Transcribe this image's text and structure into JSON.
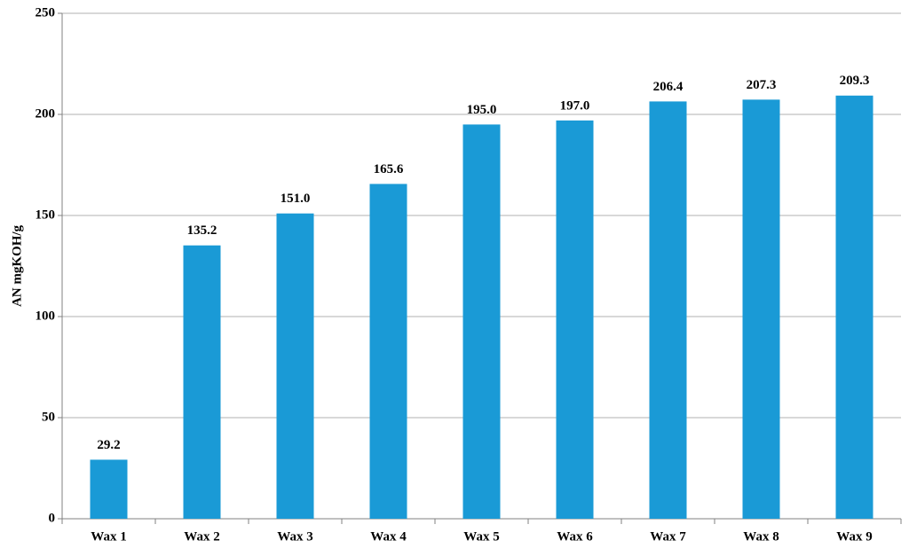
{
  "chart_data": {
    "type": "bar",
    "y_label": "AN mgKOH/g",
    "categories": [
      "Wax 1",
      "Wax 2",
      "Wax 3",
      "Wax 4",
      "Wax 5",
      "Wax 6",
      "Wax 7",
      "Wax 8",
      "Wax 9"
    ],
    "values": [
      29.2,
      135.2,
      151,
      165.6,
      195,
      197,
      206.4,
      207.3,
      209.3
    ],
    "value_labels": [
      "29.2",
      "135.2",
      "151.0",
      "165.6",
      "195.0",
      "197.0",
      "206.4",
      "207.3",
      "209.3"
    ],
    "color": "#1a9ad6",
    "ylim": [
      0,
      250
    ],
    "yticks": [
      0,
      50,
      100,
      150,
      200,
      250
    ],
    "grid": true
  }
}
